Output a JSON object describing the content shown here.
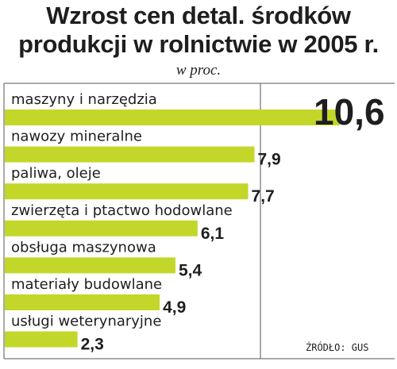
{
  "header": {
    "title_line1": "Wzrost cen detal. środków",
    "title_line2": "produkcji w rolnictwie w 2005 r.",
    "subtitle": "w proc."
  },
  "source": "ŹRÓDŁO: GUS",
  "colors": {
    "bar": "#c3d72a",
    "text": "#1e1e1e",
    "frame": "#555555",
    "background": "#ffffff"
  },
  "chart_data": {
    "type": "bar",
    "orientation": "horizontal",
    "title": "Wzrost cen detal. środków produkcji w rolnictwie w 2005 r.",
    "subtitle": "w proc.",
    "categories": [
      "maszyny i narzędzia",
      "nawozy mineralne",
      "paliwa, oleje",
      "zwierzęta i ptactwo hodowlane",
      "obsługa maszynowa",
      "materiały budowlane",
      "usługi weterynaryjne"
    ],
    "values": [
      10.6,
      7.9,
      7.7,
      6.1,
      5.4,
      4.9,
      2.3
    ],
    "value_labels": [
      "10,6",
      "7,9",
      "7,7",
      "6,1",
      "5,4",
      "4,9",
      "2,3"
    ],
    "xlim": [
      0,
      10.6
    ],
    "grid": false
  }
}
